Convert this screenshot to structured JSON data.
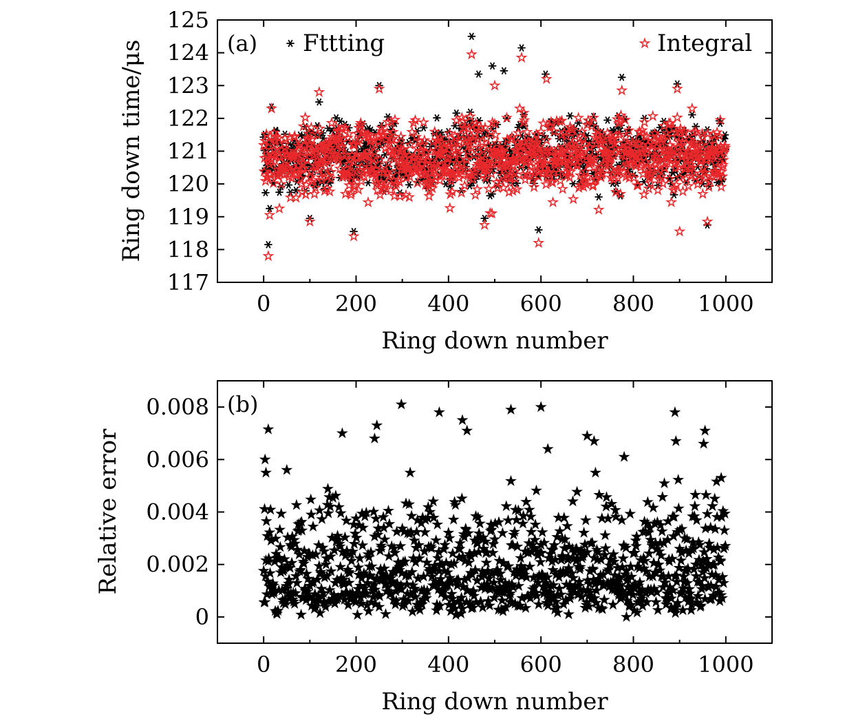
{
  "chart_data": [
    {
      "type": "scatter",
      "panel_label": "(a)",
      "xlabel": "Ring down number",
      "ylabel": "Ring down time/μs",
      "xlim": [
        -100,
        1100
      ],
      "ylim": [
        117,
        125
      ],
      "x_ticks": [
        "0",
        "200",
        "400",
        "600",
        "800",
        "1000"
      ],
      "y_ticks": [
        "117",
        "118",
        "119",
        "120",
        "121",
        "122",
        "123",
        "124",
        "125"
      ],
      "legend_position": "top",
      "series": [
        {
          "name": "Fttting",
          "marker": "asterisk",
          "color": "#000000",
          "n_points": 1000,
          "baseline_mean": 120.9,
          "baseline_spread": 0.75,
          "highlighted_points": [
            [
              10,
              118.15
            ],
            [
              13,
              119.25
            ],
            [
              100,
              118.95
            ],
            [
              120,
              122.5
            ],
            [
              195,
              118.55
            ],
            [
              250,
              123.0
            ],
            [
              450,
              124.5
            ],
            [
              465,
              123.35
            ],
            [
              478,
              118.95
            ],
            [
              495,
              123.6
            ],
            [
              520,
              123.45
            ],
            [
              558,
              124.15
            ],
            [
              595,
              118.6
            ],
            [
              610,
              123.35
            ],
            [
              775,
              123.25
            ],
            [
              895,
              123.05
            ],
            [
              960,
              118.75
            ]
          ]
        },
        {
          "name": "Integral",
          "marker": "star-outline",
          "color": "#e8282b",
          "n_points": 1000,
          "baseline_mean": 120.8,
          "baseline_spread": 0.75,
          "highlighted_points": [
            [
              10,
              117.8
            ],
            [
              13,
              119.05
            ],
            [
              100,
              118.85
            ],
            [
              120,
              122.8
            ],
            [
              195,
              118.4
            ],
            [
              250,
              122.9
            ],
            [
              450,
              123.95
            ],
            [
              478,
              118.75
            ],
            [
              500,
              123.0
            ],
            [
              558,
              123.85
            ],
            [
              595,
              118.2
            ],
            [
              612,
              123.2
            ],
            [
              775,
              122.85
            ],
            [
              895,
              122.9
            ],
            [
              900,
              118.55
            ],
            [
              960,
              118.85
            ]
          ]
        }
      ]
    },
    {
      "type": "scatter",
      "panel_label": "(b)",
      "xlabel": "Ring down number",
      "ylabel": "Relative error",
      "xlim": [
        -100,
        1100
      ],
      "ylim": [
        -0.001,
        0.009
      ],
      "x_ticks": [
        "0",
        "200",
        "400",
        "600",
        "800",
        "1000"
      ],
      "y_ticks": [
        "0",
        "0.002",
        "0.004",
        "0.006",
        "0.008"
      ],
      "series": [
        {
          "name": "Relative error",
          "marker": "star-filled",
          "color": "#000000",
          "n_points": 1000,
          "highlighted_points": [
            [
              3,
              0.006
            ],
            [
              10,
              0.00715
            ],
            [
              5,
              0.0055
            ],
            [
              50,
              0.0056
            ],
            [
              170,
              0.007
            ],
            [
              245,
              0.0073
            ],
            [
              240,
              0.0068
            ],
            [
              298,
              0.0081
            ],
            [
              380,
              0.0078
            ],
            [
              430,
              0.0075
            ],
            [
              440,
              0.0071
            ],
            [
              535,
              0.0079
            ],
            [
              600,
              0.008
            ],
            [
              615,
              0.0064
            ],
            [
              700,
              0.0069
            ],
            [
              715,
              0.0067
            ],
            [
              890,
              0.0078
            ],
            [
              892,
              0.0067
            ],
            [
              955,
              0.0071
            ],
            [
              952,
              0.0066
            ],
            [
              990,
              0.0053
            ],
            [
              780,
              0.0061
            ],
            [
              660,
              0.0001
            ],
            [
              785,
              0.0
            ]
          ]
        }
      ]
    }
  ]
}
